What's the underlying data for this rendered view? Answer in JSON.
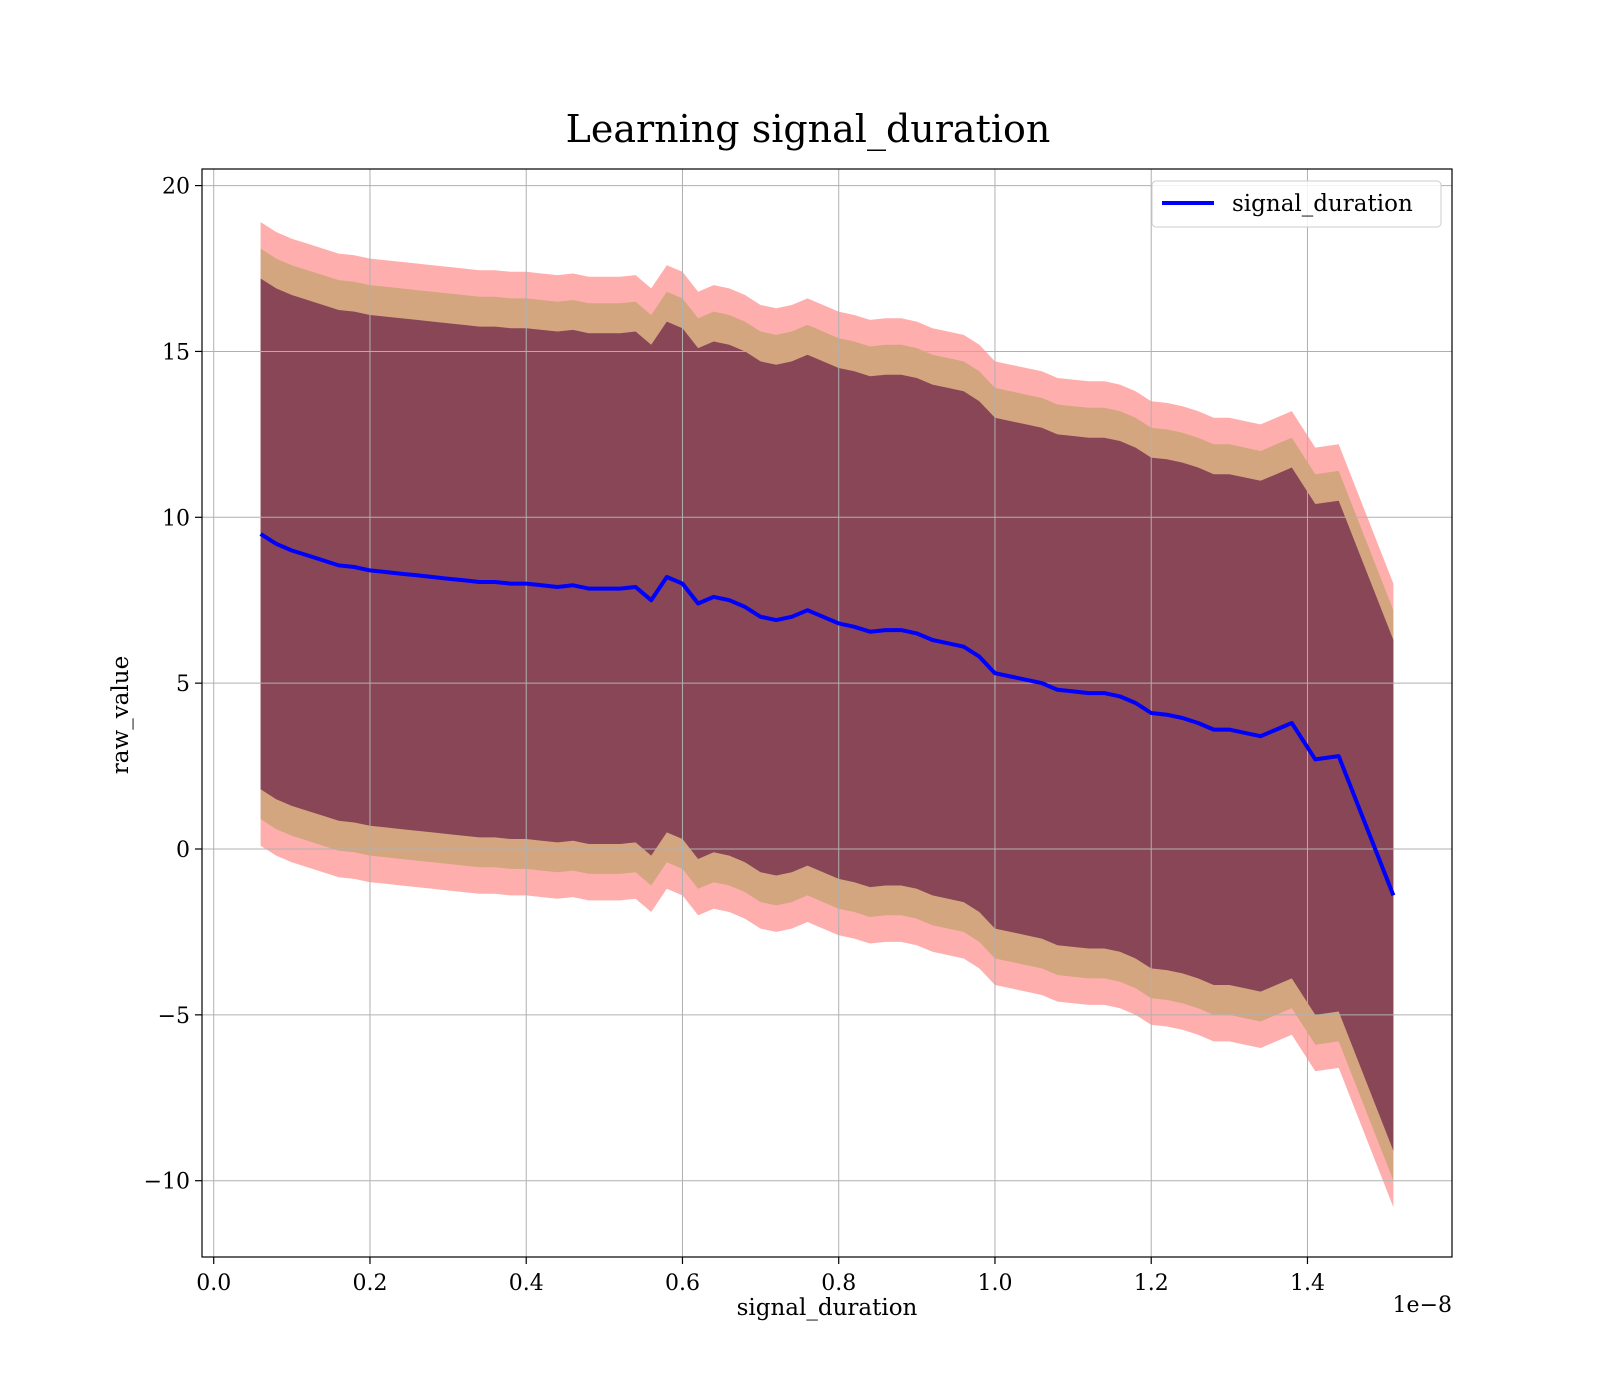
{
  "chart_data": {
    "type": "line",
    "title": "Learning signal_duration",
    "xlabel": "signal_duration",
    "ylabel": "raw_value",
    "x_offset_label": "1e−8",
    "xlim": [
      -0.015,
      1.585
    ],
    "ylim": [
      -12.3,
      20.5
    ],
    "x_ticks": [
      0.0,
      0.2,
      0.4,
      0.6,
      0.8,
      1.0,
      1.2,
      1.4
    ],
    "x_tick_labels": [
      "0.0",
      "0.2",
      "0.4",
      "0.6",
      "0.8",
      "1.0",
      "1.2",
      "1.4"
    ],
    "y_ticks": [
      -10,
      -5,
      0,
      5,
      10,
      15,
      20
    ],
    "y_tick_labels": [
      "−10",
      "−5",
      "0",
      "5",
      "10",
      "15",
      "20"
    ],
    "grid": true,
    "legend_position": "top-right",
    "colors": {
      "mean_line": "#0000ff",
      "band_outer": "#ff6b6b",
      "band_middle": "#b8a060",
      "band_inner": "#7a3550"
    },
    "series": [
      {
        "name": "signal_duration",
        "x": [
          0.06,
          0.08,
          0.1,
          0.12,
          0.14,
          0.16,
          0.18,
          0.2,
          0.22,
          0.24,
          0.26,
          0.28,
          0.3,
          0.32,
          0.34,
          0.36,
          0.38,
          0.4,
          0.42,
          0.44,
          0.46,
          0.48,
          0.5,
          0.52,
          0.54,
          0.56,
          0.58,
          0.6,
          0.62,
          0.64,
          0.66,
          0.68,
          0.7,
          0.72,
          0.74,
          0.76,
          0.78,
          0.8,
          0.82,
          0.84,
          0.86,
          0.88,
          0.9,
          0.92,
          0.94,
          0.96,
          0.98,
          1.0,
          1.02,
          1.04,
          1.06,
          1.08,
          1.1,
          1.12,
          1.14,
          1.16,
          1.18,
          1.2,
          1.22,
          1.24,
          1.26,
          1.28,
          1.3,
          1.32,
          1.34,
          1.36,
          1.38,
          1.41,
          1.44,
          1.51
        ],
        "y": [
          9.5,
          9.2,
          9.0,
          8.85,
          8.7,
          8.55,
          8.5,
          8.4,
          8.35,
          8.3,
          8.25,
          8.2,
          8.15,
          8.1,
          8.05,
          8.05,
          8.0,
          8.0,
          7.95,
          7.9,
          7.95,
          7.85,
          7.85,
          7.85,
          7.9,
          7.5,
          8.2,
          8.0,
          7.4,
          7.6,
          7.5,
          7.3,
          7.0,
          6.9,
          7.0,
          7.2,
          7.0,
          6.8,
          6.7,
          6.55,
          6.6,
          6.6,
          6.5,
          6.3,
          6.2,
          6.1,
          5.8,
          5.3,
          5.2,
          5.1,
          5.0,
          4.8,
          4.75,
          4.7,
          4.7,
          4.6,
          4.4,
          4.1,
          4.05,
          3.95,
          3.8,
          3.6,
          3.6,
          3.5,
          3.4,
          3.6,
          3.8,
          2.7,
          2.8,
          -1.4
        ]
      }
    ],
    "bands": [
      {
        "role": "outer",
        "lower_offset": -9.4,
        "upper_offset": 9.4
      },
      {
        "role": "middle",
        "lower_offset": -8.6,
        "upper_offset": 8.6
      },
      {
        "role": "inner",
        "lower_offset": -7.7,
        "upper_offset": 7.7
      }
    ]
  }
}
